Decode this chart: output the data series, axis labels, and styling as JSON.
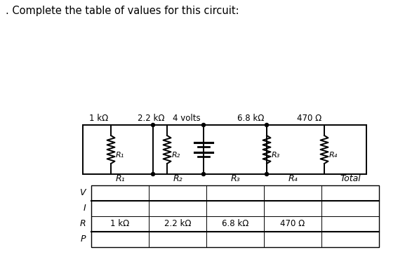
{
  "title": ". Complete the table of values for this circuit:",
  "title_fontsize": 10.5,
  "background_color": "#ffffff",
  "circuit": {
    "resistor_labels": [
      "1 kΩ",
      "2.2 kΩ",
      "6.8 kΩ",
      "470 Ω"
    ],
    "resistor_sublabels": [
      "R₁",
      "R₂",
      "R₃",
      "R₄"
    ],
    "voltage_label": "4 volts"
  },
  "table": {
    "col_headers": [
      "R₁",
      "R₂",
      "R₃",
      "R₄",
      "Total"
    ],
    "row_headers": [
      "V",
      "I",
      "R",
      "P"
    ],
    "r_row_values": [
      "1 kΩ",
      "2.2 kΩ",
      "6.8 kΩ",
      "470 Ω",
      ""
    ],
    "r_row_index": 2
  }
}
